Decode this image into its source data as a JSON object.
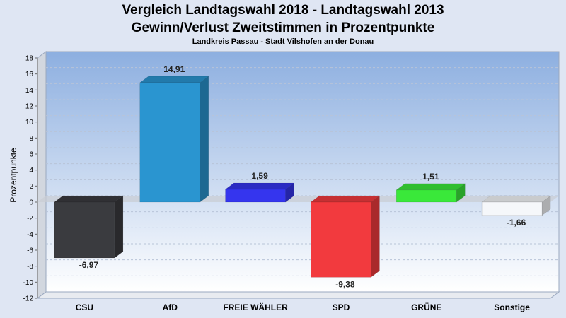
{
  "chart_data": {
    "type": "bar",
    "title": "Vergleich Landtagswahl 2018 - Landtagswahl 2013",
    "subtitle": "Gewinn/Verlust Zweitstimmen in Prozentpunkte",
    "caption": "Landkreis Passau - Stadt Vilshofen an der Donau",
    "ylabel": "Prozentpunkte",
    "xlabel": "",
    "ylim": [
      -12,
      18
    ],
    "yticks": [
      -12,
      -10,
      -8,
      -6,
      -4,
      -2,
      0,
      2,
      4,
      6,
      8,
      10,
      12,
      14,
      16,
      18
    ],
    "grid": true,
    "categories": [
      "CSU",
      "AfD",
      "FREIE WÄHLER",
      "SPD",
      "GRÜNE",
      "Sonstige"
    ],
    "values": [
      -6.97,
      14.91,
      1.59,
      -9.38,
      1.51,
      -1.66
    ],
    "value_labels": [
      "-6,97",
      "14,91",
      "1,59",
      "-9,38",
      "1,51",
      "-1,66"
    ],
    "colors": [
      "#3a3b3f",
      "#2a95d0",
      "#3535ee",
      "#f23a3e",
      "#3ae83a",
      "#f5f7fa"
    ]
  }
}
